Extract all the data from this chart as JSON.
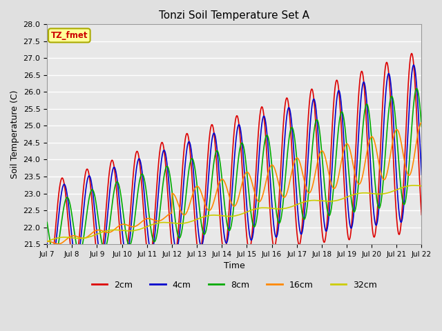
{
  "title": "Tonzi Soil Temperature Set A",
  "xlabel": "Time",
  "ylabel": "Soil Temperature (C)",
  "annotation": "TZ_fmet",
  "annotation_color": "#cc0000",
  "annotation_bg": "#ffff99",
  "annotation_border": "#aaaa00",
  "ylim": [
    21.5,
    28.0
  ],
  "x_tick_labels": [
    "Jul 7",
    "Jul 8",
    "Jul 9",
    "Jul 10",
    "Jul 11",
    "Jul 12",
    "Jul 13",
    "Jul 14",
    "Jul 15",
    "Jul 16",
    "Jul 17",
    "Jul 18",
    "Jul 19",
    "Jul 20",
    "Jul 21",
    "Jul 22"
  ],
  "background_color": "#e0e0e0",
  "plot_bg_color": "#e8e8e8",
  "grid_color": "#ffffff",
  "series": [
    {
      "label": "2cm",
      "color": "#dd0000",
      "lw": 1.2
    },
    {
      "label": "4cm",
      "color": "#0000cc",
      "lw": 1.2
    },
    {
      "label": "8cm",
      "color": "#00aa00",
      "lw": 1.2
    },
    {
      "label": "16cm",
      "color": "#ff8800",
      "lw": 1.2
    },
    {
      "label": "32cm",
      "color": "#cccc00",
      "lw": 1.2
    }
  ],
  "n_points": 1500,
  "start_day": 0,
  "end_day": 15
}
